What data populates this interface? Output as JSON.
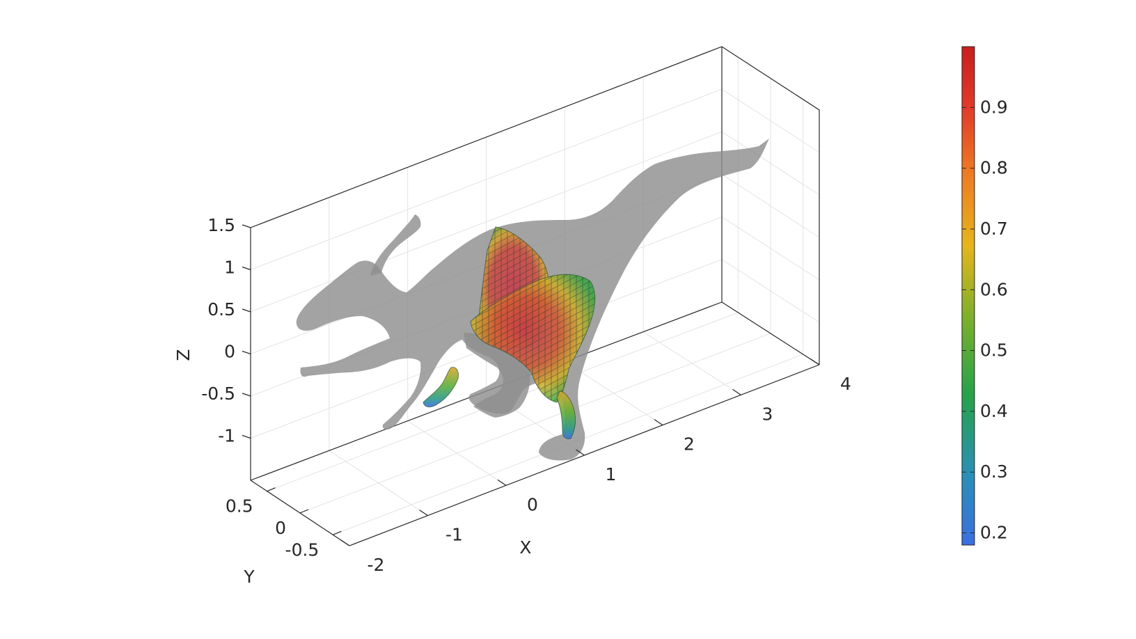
{
  "chart_data": {
    "type": "other",
    "title": "",
    "axes": {
      "x": {
        "label": "X",
        "ticks": [
          "-2",
          "-1",
          "0",
          "1",
          "2",
          "3",
          "4"
        ],
        "range": [
          -2,
          4
        ]
      },
      "y": {
        "label": "Y",
        "ticks": [
          "0.5",
          "0",
          "-0.5"
        ],
        "range": [
          -0.75,
          0.75
        ]
      },
      "z": {
        "label": "Z",
        "ticks": [
          "1.5",
          "1",
          "0.5",
          "0",
          "-0.5",
          "-1"
        ],
        "range": [
          -1.5,
          1.5
        ]
      }
    },
    "grid": true,
    "box": true,
    "colorbar": {
      "colormap": "turbo-like (blue → green → yellow → red)",
      "range": [
        0.18,
        1.0
      ],
      "ticks": [
        "0.2",
        "0.3",
        "0.4",
        "0.5",
        "0.6",
        "0.7",
        "0.8",
        "0.9"
      ],
      "colors": [
        "#3b6fe0",
        "#2a9a9a",
        "#25a24a",
        "#7fb02a",
        "#e6b51c",
        "#ee7d22",
        "#e03a2a",
        "#c81e1e"
      ]
    },
    "surface": {
      "shape": "dinosaur silhouette",
      "color": "#999999",
      "opacity": 0.8
    },
    "voxels": {
      "description": "cross-sectional voxel slices colored by value, concentrated in torso and leg regions"
    }
  }
}
